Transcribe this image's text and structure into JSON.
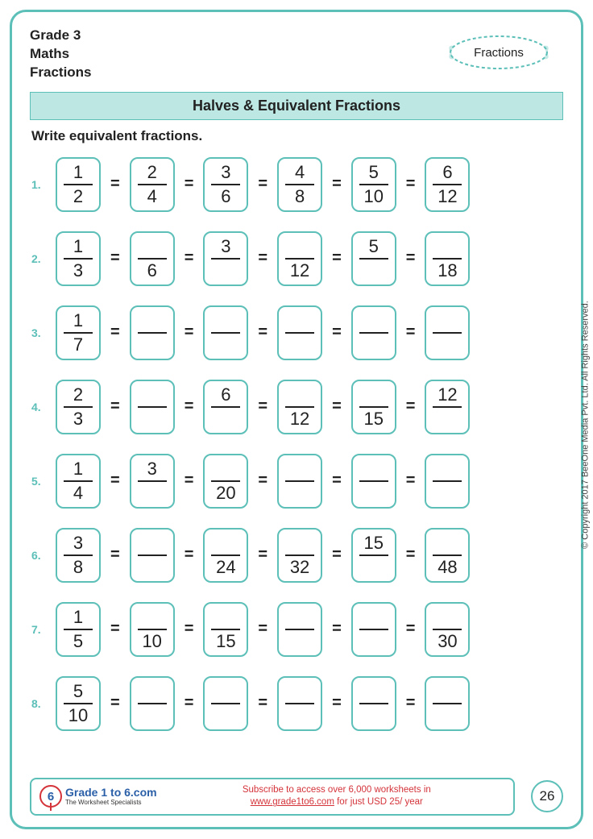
{
  "header": {
    "grade": "Grade 3",
    "subject": "Maths",
    "topic": "Fractions",
    "badge": "Fractions"
  },
  "title": "Halves & Equivalent Fractions",
  "instruction": "Write equivalent fractions.",
  "colors": {
    "accent": "#5cbfb8",
    "title_bg": "#bde7e3",
    "text": "#222222",
    "red": "#d4333a",
    "blue": "#2a5fa8"
  },
  "problems": [
    {
      "n": "1.",
      "cells": [
        {
          "num": "1",
          "den": "2"
        },
        {
          "num": "2",
          "den": "4"
        },
        {
          "num": "3",
          "den": "6"
        },
        {
          "num": "4",
          "den": "8"
        },
        {
          "num": "5",
          "den": "10"
        },
        {
          "num": "6",
          "den": "12"
        }
      ]
    },
    {
      "n": "2.",
      "cells": [
        {
          "num": "1",
          "den": "3"
        },
        {
          "num": "",
          "den": "6"
        },
        {
          "num": "3",
          "den": ""
        },
        {
          "num": "",
          "den": "12"
        },
        {
          "num": "5",
          "den": ""
        },
        {
          "num": "",
          "den": "18"
        }
      ]
    },
    {
      "n": "3.",
      "cells": [
        {
          "num": "1",
          "den": "7"
        },
        {
          "num": "",
          "den": ""
        },
        {
          "num": "",
          "den": ""
        },
        {
          "num": "",
          "den": ""
        },
        {
          "num": "",
          "den": ""
        },
        {
          "num": "",
          "den": ""
        }
      ]
    },
    {
      "n": "4.",
      "cells": [
        {
          "num": "2",
          "den": "3"
        },
        {
          "num": "",
          "den": ""
        },
        {
          "num": "6",
          "den": ""
        },
        {
          "num": "",
          "den": "12"
        },
        {
          "num": "",
          "den": "15"
        },
        {
          "num": "12",
          "den": ""
        }
      ]
    },
    {
      "n": "5.",
      "cells": [
        {
          "num": "1",
          "den": "4"
        },
        {
          "num": "3",
          "den": ""
        },
        {
          "num": "",
          "den": "20"
        },
        {
          "num": "",
          "den": ""
        },
        {
          "num": "",
          "den": ""
        },
        {
          "num": "",
          "den": ""
        }
      ]
    },
    {
      "n": "6.",
      "cells": [
        {
          "num": "3",
          "den": "8"
        },
        {
          "num": "",
          "den": ""
        },
        {
          "num": "",
          "den": "24"
        },
        {
          "num": "",
          "den": "32"
        },
        {
          "num": "15",
          "den": ""
        },
        {
          "num": "",
          "den": "48"
        }
      ]
    },
    {
      "n": "7.",
      "cells": [
        {
          "num": "1",
          "den": "5"
        },
        {
          "num": "",
          "den": "10"
        },
        {
          "num": "",
          "den": "15"
        },
        {
          "num": "",
          "den": ""
        },
        {
          "num": "",
          "den": ""
        },
        {
          "num": "",
          "den": "30"
        }
      ]
    },
    {
      "n": "8.",
      "cells": [
        {
          "num": "5",
          "den": "10"
        },
        {
          "num": "",
          "den": ""
        },
        {
          "num": "",
          "den": ""
        },
        {
          "num": "",
          "den": ""
        },
        {
          "num": "",
          "den": ""
        },
        {
          "num": "",
          "den": ""
        }
      ]
    }
  ],
  "footer": {
    "brand": "Grade 1 to 6.com",
    "tagline": "The Worksheet Specialists",
    "subscribe_line1": "Subscribe to access over 6,000 worksheets in",
    "link": "www.grade1to6.com",
    "subscribe_line2": " for just USD 25/ year",
    "page": "26"
  },
  "copyright": "© Copyright 2017 BeeOne Media Pvt. Ltd. All Rights Reserved."
}
